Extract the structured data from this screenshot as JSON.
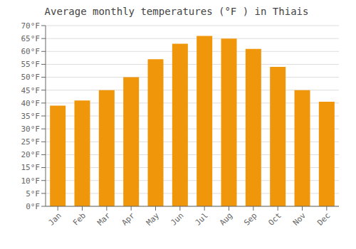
{
  "chart_data": {
    "type": "bar",
    "title": "Average monthly temperatures (°F ) in Thiais",
    "categories": [
      "Jan",
      "Feb",
      "Mar",
      "Apr",
      "May",
      "Jun",
      "Jul",
      "Aug",
      "Sep",
      "Oct",
      "Nov",
      "Dec"
    ],
    "values": [
      39,
      41,
      45,
      50,
      57,
      63,
      66,
      65,
      61,
      54,
      45,
      40.5
    ],
    "color": "#F0960A",
    "ylim": [
      0,
      70
    ],
    "yticks": [
      {
        "value": 0,
        "label": "0°F"
      },
      {
        "value": 5,
        "label": "5°F"
      },
      {
        "value": 10,
        "label": "10°F"
      },
      {
        "value": 15,
        "label": "15°F"
      },
      {
        "value": 20,
        "label": "20°F"
      },
      {
        "value": 25,
        "label": "25°F"
      },
      {
        "value": 30,
        "label": "30°F"
      },
      {
        "value": 35,
        "label": "35°F"
      },
      {
        "value": 40,
        "label": "40°F"
      },
      {
        "value": 45,
        "label": "45°F"
      },
      {
        "value": 50,
        "label": "50°F"
      },
      {
        "value": 55,
        "label": "55°F"
      },
      {
        "value": 60,
        "label": "60°F"
      },
      {
        "value": 65,
        "label": "65°F"
      },
      {
        "value": 70,
        "label": "70°F"
      }
    ],
    "grid": true
  }
}
